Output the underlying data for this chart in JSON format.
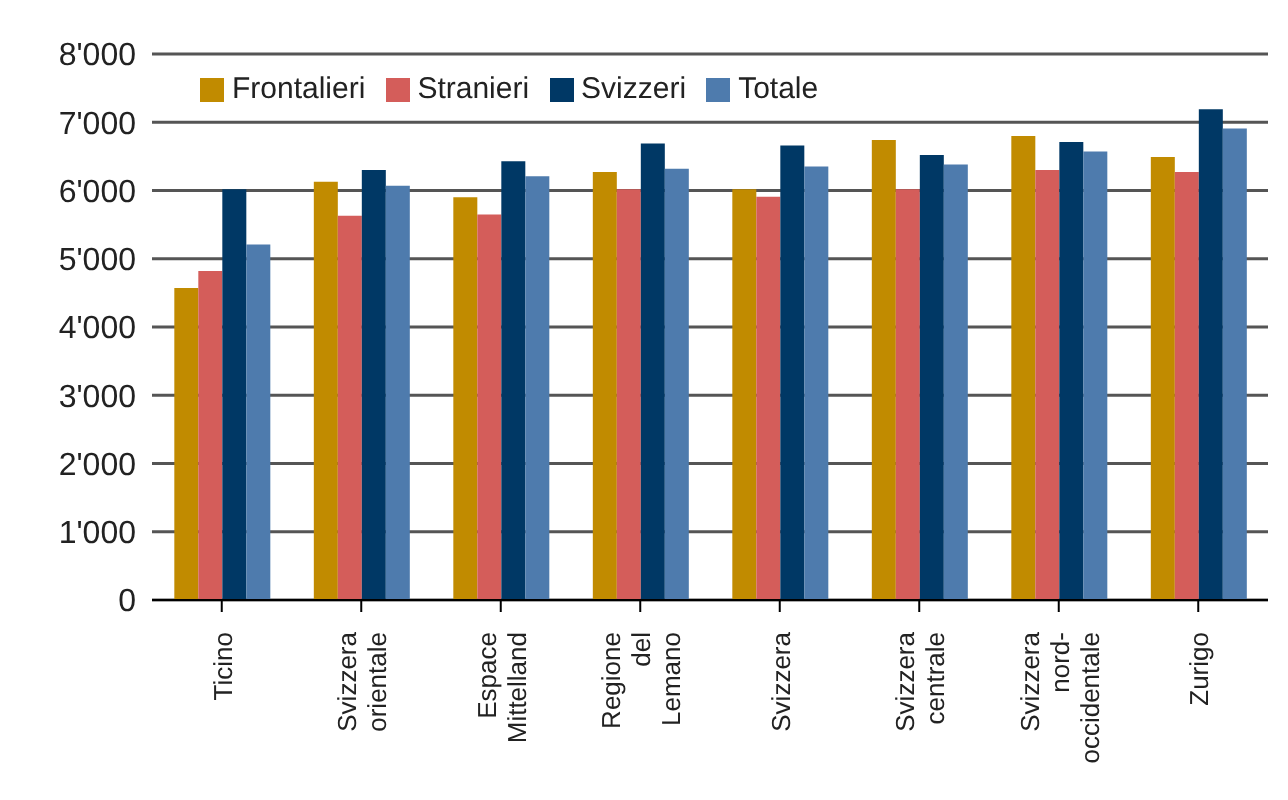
{
  "chart_data": {
    "type": "bar",
    "categories": [
      "Ticino",
      "Svizzera orientale",
      "Espace Mittelland",
      "Regione del Lemano",
      "Svizzera",
      "Svizzera centrale",
      "Svizzera nord-occidentale",
      "Zurigo"
    ],
    "series": [
      {
        "name": "Frontalieri",
        "color": "#c18b00",
        "values": [
          4570,
          6130,
          5900,
          6270,
          6020,
          6740,
          6800,
          6490
        ]
      },
      {
        "name": "Stranieri",
        "color": "#d45d5a",
        "values": [
          4820,
          5630,
          5650,
          6020,
          5910,
          6020,
          6300,
          6270
        ]
      },
      {
        "name": "Svizzeri",
        "color": "#003865",
        "values": [
          6020,
          6300,
          6430,
          6690,
          6660,
          6520,
          6710,
          7190
        ]
      },
      {
        "name": "Totale",
        "color": "#4e7bad",
        "values": [
          5210,
          6070,
          6210,
          6320,
          6350,
          6380,
          6570,
          6910
        ]
      }
    ],
    "ylim": [
      0,
      8000
    ],
    "yticks": [
      0,
      {
        "value": 1000,
        "label": "1'000"
      },
      {
        "value": 2000,
        "label": "2'000"
      },
      {
        "value": 3000,
        "label": "3'000"
      },
      {
        "value": 4000,
        "label": "4'000"
      },
      {
        "value": 5000,
        "label": "5'000"
      },
      {
        "value": 6000,
        "label": "6'000"
      },
      {
        "value": 7000,
        "label": "7'000"
      },
      {
        "value": 8000,
        "label": "8'000"
      }
    ],
    "grid": "y",
    "legend": "top left"
  }
}
